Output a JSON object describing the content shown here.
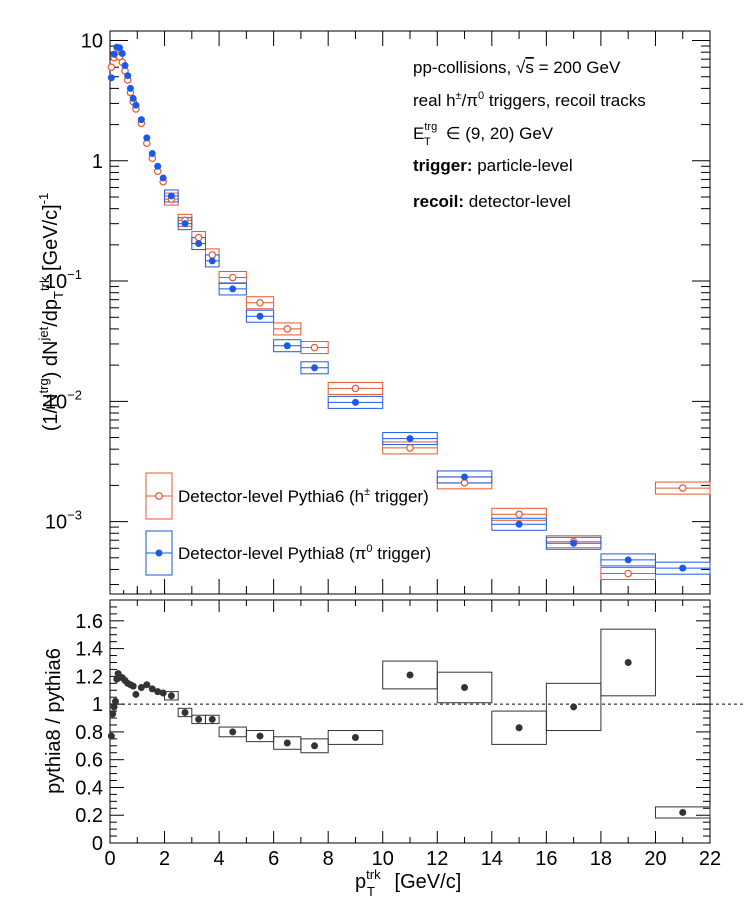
{
  "chart_data": [
    {
      "type": "scatter",
      "panel": "top",
      "yscale": "log",
      "xlim": [
        0,
        22
      ],
      "ylim": [
        0.00025,
        12
      ],
      "ylabel": {
        "base": "(1/N",
        "sup1": "trg",
        "mid": ") dN",
        "sup2": "jet",
        "mid2": "/dp",
        "sub": "T",
        "sup3": "trk",
        "tail": " [GeV/c]",
        "sup4": "-1"
      },
      "yticks": [
        {
          "value": 10,
          "label": "10"
        },
        {
          "value": 1,
          "label": "1"
        },
        {
          "value": 0.1,
          "label": "10",
          "exp": "−1"
        },
        {
          "value": 0.01,
          "label": "10",
          "exp": "−2"
        },
        {
          "value": 0.001,
          "label": "10",
          "exp": "−3"
        }
      ],
      "annotations": [
        {
          "id": "collisions",
          "prefix": "pp-collisions, ",
          "sqrt": "s",
          "suffix": " = 200 GeV"
        },
        {
          "id": "triggers",
          "pre": "real h",
          "sup1": "±",
          "mid": "/π",
          "sup2": "0",
          "post": " triggers, recoil tracks"
        },
        {
          "id": "energy",
          "E": "E",
          "sup": "trg",
          "sub": "T",
          "rest": " ∈ (9, 20) GeV"
        },
        {
          "id": "trigger",
          "bold": "trigger:",
          "rest": " particle-level"
        },
        {
          "id": "recoil",
          "bold": "recoil:",
          "rest": " detector-level"
        }
      ],
      "legend": [
        {
          "id": "pythia6",
          "label": "Detector-level Pythia6 (h",
          "sup": "±",
          "tail": " trigger)",
          "color": "#e8562a",
          "marker": "open-circle"
        },
        {
          "id": "pythia8",
          "label": "Detector-level Pythia8 (π",
          "sup": "0",
          "tail": " trigger)",
          "color": "#1a5ae6",
          "marker": "filled-circle"
        }
      ],
      "series": [
        {
          "name": "Detector-level Pythia6 (h± trigger)",
          "color": "#e8562a",
          "marker": "open",
          "points": [
            {
              "x": 0.05,
              "y": 6.0
            },
            {
              "x": 0.15,
              "y": 7.2
            },
            {
              "x": 0.25,
              "y": 7.6
            },
            {
              "x": 0.35,
              "y": 7.3
            },
            {
              "x": 0.45,
              "y": 6.6
            },
            {
              "x": 0.55,
              "y": 5.6
            },
            {
              "x": 0.65,
              "y": 4.7
            },
            {
              "x": 0.75,
              "y": 3.7
            },
            {
              "x": 0.85,
              "y": 3.1
            },
            {
              "x": 0.95,
              "y": 2.7
            },
            {
              "x": 1.15,
              "y": 2.05
            },
            {
              "x": 1.35,
              "y": 1.4
            },
            {
              "x": 1.55,
              "y": 1.05
            },
            {
              "x": 1.75,
              "y": 0.82
            },
            {
              "x": 1.95,
              "y": 0.67
            },
            {
              "x": 2.25,
              "y": 0.48,
              "xerr": 0.25
            },
            {
              "x": 2.75,
              "y": 0.32,
              "xerr": 0.25
            },
            {
              "x": 3.25,
              "y": 0.23,
              "xerr": 0.25
            },
            {
              "x": 3.75,
              "y": 0.165,
              "xerr": 0.25
            },
            {
              "x": 4.5,
              "y": 0.107,
              "xerr": 0.5
            },
            {
              "x": 5.5,
              "y": 0.066,
              "xerr": 0.5
            },
            {
              "x": 6.5,
              "y": 0.04,
              "xerr": 0.5
            },
            {
              "x": 7.5,
              "y": 0.028,
              "xerr": 0.5
            },
            {
              "x": 9.0,
              "y": 0.0128,
              "xerr": 1.0
            },
            {
              "x": 11.0,
              "y": 0.0041,
              "xerr": 1.0
            },
            {
              "x": 13.0,
              "y": 0.0021,
              "xerr": 1.0
            },
            {
              "x": 15.0,
              "y": 0.00115,
              "xerr": 1.0
            },
            {
              "x": 17.0,
              "y": 0.00068,
              "xerr": 1.0
            },
            {
              "x": 19.0,
              "y": 0.00037,
              "xerr": 1.0
            },
            {
              "x": 21.0,
              "y": 0.0019,
              "xerr": 1.0
            }
          ]
        },
        {
          "name": "Detector-level Pythia8 (π0 trigger)",
          "color": "#1a5ae6",
          "marker": "filled",
          "points": [
            {
              "x": 0.05,
              "y": 4.9
            },
            {
              "x": 0.15,
              "y": 7.7
            },
            {
              "x": 0.25,
              "y": 8.8
            },
            {
              "x": 0.35,
              "y": 8.7
            },
            {
              "x": 0.45,
              "y": 7.8
            },
            {
              "x": 0.55,
              "y": 6.2
            },
            {
              "x": 0.65,
              "y": 5.1
            },
            {
              "x": 0.75,
              "y": 4.0
            },
            {
              "x": 0.85,
              "y": 3.3
            },
            {
              "x": 0.95,
              "y": 2.9
            },
            {
              "x": 1.15,
              "y": 2.2
            },
            {
              "x": 1.35,
              "y": 1.55
            },
            {
              "x": 1.55,
              "y": 1.15
            },
            {
              "x": 1.75,
              "y": 0.9
            },
            {
              "x": 1.95,
              "y": 0.72
            },
            {
              "x": 2.25,
              "y": 0.51,
              "xerr": 0.25
            },
            {
              "x": 2.75,
              "y": 0.3,
              "xerr": 0.25
            },
            {
              "x": 3.25,
              "y": 0.205,
              "xerr": 0.25
            },
            {
              "x": 3.75,
              "y": 0.147,
              "xerr": 0.25
            },
            {
              "x": 4.5,
              "y": 0.086,
              "xerr": 0.5
            },
            {
              "x": 5.5,
              "y": 0.051,
              "xerr": 0.5
            },
            {
              "x": 6.5,
              "y": 0.029,
              "xerr": 0.5
            },
            {
              "x": 7.5,
              "y": 0.019,
              "xerr": 0.5
            },
            {
              "x": 9.0,
              "y": 0.0098,
              "xerr": 1.0
            },
            {
              "x": 11.0,
              "y": 0.0049,
              "xerr": 1.0
            },
            {
              "x": 13.0,
              "y": 0.00235,
              "xerr": 1.0
            },
            {
              "x": 15.0,
              "y": 0.00095,
              "xerr": 1.0
            },
            {
              "x": 17.0,
              "y": 0.00066,
              "xerr": 1.0
            },
            {
              "x": 19.0,
              "y": 0.00048,
              "xerr": 1.0
            },
            {
              "x": 21.0,
              "y": 0.00041,
              "xerr": 1.0
            }
          ]
        }
      ]
    },
    {
      "type": "scatter",
      "panel": "ratio",
      "xlim": [
        0,
        22
      ],
      "ylim": [
        0,
        1.75
      ],
      "xlabel": {
        "p": "p",
        "sup": "trk",
        "sub": "T",
        "rest": " [GeV/c]"
      },
      "ylabel": "pythia8 / pythia6",
      "xticks": [
        "0",
        "2",
        "4",
        "6",
        "8",
        "10",
        "12",
        "14",
        "16",
        "18",
        "20",
        "22"
      ],
      "yticks": [
        "0",
        "0.2",
        "0.4",
        "0.6",
        "0.8",
        "1",
        "1.2",
        "1.4",
        "1.6"
      ],
      "reference_line": 1,
      "series": [
        {
          "name": "ratio",
          "color": "#333333",
          "points": [
            {
              "x": 0.05,
              "y": 0.77
            },
            {
              "x": 0.1,
              "y": 0.93
            },
            {
              "x": 0.15,
              "y": 0.98
            },
            {
              "x": 0.2,
              "y": 1.02
            },
            {
              "x": 0.25,
              "y": 1.18
            },
            {
              "x": 0.3,
              "y": 1.22
            },
            {
              "x": 0.35,
              "y": 1.2
            },
            {
              "x": 0.45,
              "y": 1.19
            },
            {
              "x": 0.55,
              "y": 1.17
            },
            {
              "x": 0.65,
              "y": 1.15
            },
            {
              "x": 0.75,
              "y": 1.14
            },
            {
              "x": 0.85,
              "y": 1.13
            },
            {
              "x": 0.95,
              "y": 1.07
            },
            {
              "x": 1.15,
              "y": 1.12
            },
            {
              "x": 1.35,
              "y": 1.14
            },
            {
              "x": 1.55,
              "y": 1.11
            },
            {
              "x": 1.75,
              "y": 1.09
            },
            {
              "x": 1.95,
              "y": 1.08
            },
            {
              "x": 2.25,
              "y": 1.06,
              "xerr": 0.25,
              "yerr": 0.03
            },
            {
              "x": 2.75,
              "y": 0.94,
              "xerr": 0.25,
              "yerr": 0.03
            },
            {
              "x": 3.25,
              "y": 0.89,
              "xerr": 0.25,
              "yerr": 0.03
            },
            {
              "x": 3.75,
              "y": 0.89,
              "xerr": 0.25,
              "yerr": 0.03
            },
            {
              "x": 4.5,
              "y": 0.8,
              "xerr": 0.5,
              "yerr": 0.035
            },
            {
              "x": 5.5,
              "y": 0.77,
              "xerr": 0.5,
              "yerr": 0.04
            },
            {
              "x": 6.5,
              "y": 0.72,
              "xerr": 0.5,
              "yerr": 0.045
            },
            {
              "x": 7.5,
              "y": 0.7,
              "xerr": 0.5,
              "yerr": 0.05
            },
            {
              "x": 9.0,
              "y": 0.76,
              "xerr": 1.0,
              "yerr": 0.05
            },
            {
              "x": 11.0,
              "y": 1.21,
              "xerr": 1.0,
              "yerr": 0.1
            },
            {
              "x": 13.0,
              "y": 1.12,
              "xerr": 1.0,
              "yerr": 0.11
            },
            {
              "x": 15.0,
              "y": 0.83,
              "xerr": 1.0,
              "yerr": 0.12
            },
            {
              "x": 17.0,
              "y": 0.98,
              "xerr": 1.0,
              "yerr": 0.17
            },
            {
              "x": 19.0,
              "y": 1.3,
              "xerr": 1.0,
              "yerr": 0.24
            },
            {
              "x": 21.0,
              "y": 0.22,
              "xerr": 1.0,
              "yerr": 0.04
            }
          ]
        }
      ]
    }
  ]
}
